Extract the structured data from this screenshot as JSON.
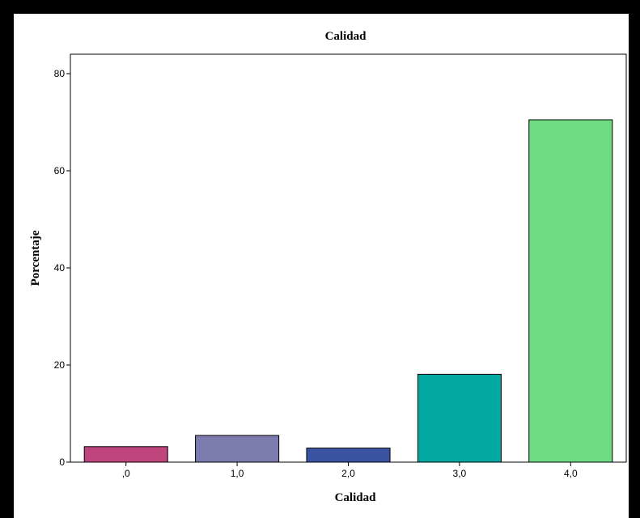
{
  "chart_data": {
    "type": "bar",
    "title": "Calidad",
    "xlabel": "Calidad",
    "ylabel": "Porcentaje",
    "categories": [
      ",0",
      "1,0",
      "2,0",
      "3,0",
      "4,0"
    ],
    "values": [
      3.2,
      5.5,
      2.9,
      18.1,
      70.5
    ],
    "ylim": [
      0,
      84
    ],
    "yticks": [
      0,
      20,
      40,
      60,
      80
    ],
    "grid": false,
    "colors": [
      "#c0457c",
      "#7b7cad",
      "#3b53a3",
      "#00a8a1",
      "#6fdc84"
    ]
  }
}
